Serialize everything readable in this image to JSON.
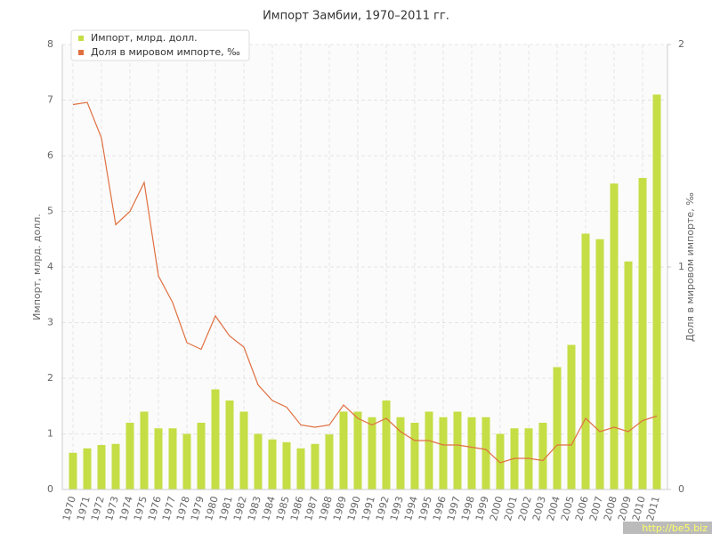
{
  "chart_data": {
    "type": "bar",
    "title": "Импорт Замбии, 1970–2011 гг.",
    "y_label": "Импорт, млрд. долл.",
    "y2_label": "Доля в мировом импорте, ‰",
    "categories": [
      "1970",
      "1971",
      "1972",
      "1973",
      "1974",
      "1975",
      "1976",
      "1977",
      "1978",
      "1979",
      "1980",
      "1981",
      "1982",
      "1983",
      "1984",
      "1985",
      "1986",
      "1987",
      "1988",
      "1989",
      "1990",
      "1991",
      "1992",
      "1993",
      "1994",
      "1995",
      "1996",
      "1997",
      "1998",
      "1999",
      "2000",
      "2001",
      "2002",
      "2003",
      "2004",
      "2005",
      "2006",
      "2007",
      "2008",
      "2009",
      "2010",
      "2011"
    ],
    "series": [
      {
        "name": "Импорт, млрд. долл.",
        "type": "bar",
        "color": "#c5de45",
        "values": [
          0.66,
          0.74,
          0.8,
          0.82,
          1.2,
          1.4,
          1.1,
          1.1,
          1.0,
          1.2,
          1.8,
          1.6,
          1.4,
          1.0,
          0.9,
          0.85,
          0.74,
          0.82,
          0.99,
          1.4,
          1.4,
          1.3,
          1.6,
          1.3,
          1.2,
          1.4,
          1.3,
          1.4,
          1.3,
          1.3,
          1.0,
          1.1,
          1.1,
          1.2,
          2.2,
          2.6,
          4.6,
          4.5,
          5.5,
          4.1,
          5.6,
          7.1
        ]
      },
      {
        "name": "Доля в мировом импорте, ‰",
        "type": "line",
        "axis": "y2",
        "color": "#e07040",
        "values": [
          1.73,
          1.74,
          1.58,
          1.19,
          1.25,
          1.38,
          0.96,
          0.84,
          0.66,
          0.63,
          0.78,
          0.69,
          0.64,
          0.47,
          0.4,
          0.37,
          0.29,
          0.28,
          0.29,
          0.38,
          0.32,
          0.29,
          0.32,
          0.26,
          0.22,
          0.22,
          0.2,
          0.2,
          0.19,
          0.18,
          0.12,
          0.14,
          0.14,
          0.13,
          0.2,
          0.2,
          0.32,
          0.26,
          0.28,
          0.26,
          0.31,
          0.33
        ]
      }
    ],
    "ylim": [
      0,
      8
    ],
    "yticks": [
      0,
      1,
      2,
      3,
      4,
      5,
      6,
      7,
      8
    ],
    "y2lim": [
      0,
      2
    ],
    "y2ticks": [
      0,
      1,
      2
    ],
    "grid": true,
    "legend": "top-left",
    "watermark": "http://be5.biz"
  }
}
